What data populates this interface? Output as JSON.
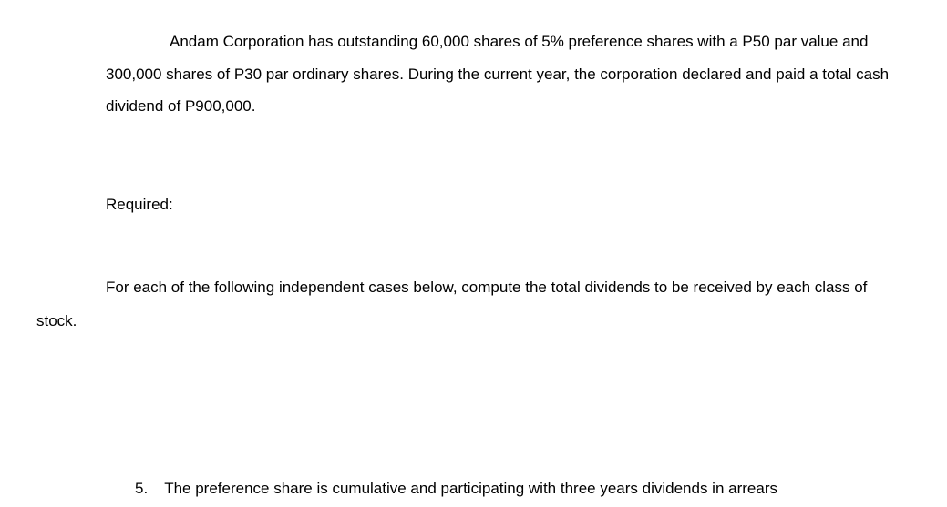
{
  "document": {
    "intro": {
      "line1": "Andam Corporation has outstanding 60,000 shares of 5% preference shares with a P50 par value and",
      "line2": "300,000 shares of P30 par ordinary shares. During the current year, the corporation declared and paid a total cash",
      "line3": "dividend of P900,000."
    },
    "required_label": "Required:",
    "instruction": {
      "line1": "For each of the following independent cases below, compute the total dividends to be received by each class of",
      "line2": "stock."
    },
    "question": {
      "number": "5.",
      "text": "The preference share is cumulative and participating with three years dividends in arrears"
    },
    "styling": {
      "font_size_pt": 17,
      "text_color": "#000000",
      "background_color": "#ffffff",
      "font_family": "Arial"
    }
  }
}
